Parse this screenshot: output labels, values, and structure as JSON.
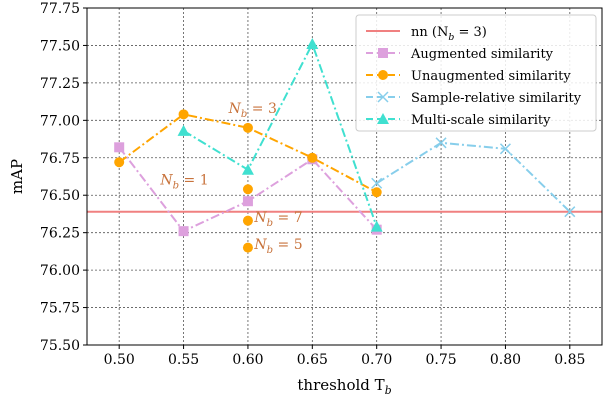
{
  "chart_data": {
    "type": "line",
    "xlabel": "threshold T",
    "xlabel_sub": "b",
    "ylabel": "mAP",
    "xlim": [
      0.475,
      0.875
    ],
    "ylim": [
      75.5,
      77.75
    ],
    "xticks": [
      0.5,
      0.55,
      0.6,
      0.65,
      0.7,
      0.75,
      0.8,
      0.85
    ],
    "yticks": [
      75.5,
      75.75,
      76.0,
      76.25,
      76.5,
      76.75,
      77.0,
      77.25,
      77.5,
      77.75
    ],
    "grid": true,
    "legend_position": "top-right",
    "legend": [
      {
        "label": "nn (N",
        "sub": "b",
        "suffix": " = 3)",
        "series": "nn"
      },
      {
        "label": "Augmented similarity",
        "series": "aug"
      },
      {
        "label": "Unaugmented similarity",
        "series": "unaug"
      },
      {
        "label": "Sample-relative similarity",
        "series": "sr"
      },
      {
        "label": "Multi-scale similarity",
        "series": "ms"
      }
    ],
    "series": [
      {
        "id": "nn",
        "name": "nn (Nb = 3)",
        "color": "#f08080",
        "style": "solid",
        "marker": "none",
        "x": [
          0.475,
          0.875
        ],
        "y": [
          76.39,
          76.39
        ]
      },
      {
        "id": "aug",
        "name": "Augmented similarity",
        "color": "#dda0dd",
        "style": "dashdot",
        "marker": "square",
        "x": [
          0.5,
          0.55,
          0.6,
          0.65,
          0.7
        ],
        "y": [
          76.82,
          76.26,
          76.46,
          76.74,
          76.27
        ]
      },
      {
        "id": "unaug",
        "name": "Unaugmented similarity",
        "color": "#ffa500",
        "style": "dashdot",
        "marker": "circle",
        "x": [
          0.5,
          0.55,
          0.6,
          0.65,
          0.7
        ],
        "y": [
          76.72,
          77.04,
          76.95,
          76.75,
          76.52
        ]
      },
      {
        "id": "sr",
        "name": "Sample-relative similarity",
        "color": "#87ceeb",
        "style": "dashdot",
        "marker": "x",
        "x": [
          0.7,
          0.75,
          0.8,
          0.85
        ],
        "y": [
          76.58,
          76.85,
          76.81,
          76.39
        ]
      },
      {
        "id": "ms",
        "name": "Multi-scale similarity",
        "color": "#40e0d0",
        "style": "dashdot",
        "marker": "triangle",
        "x": [
          0.55,
          0.6,
          0.65,
          0.7
        ],
        "y": [
          76.93,
          76.67,
          77.51,
          76.29
        ]
      }
    ],
    "extra_points": [
      {
        "x": 0.6,
        "y": 76.54,
        "color": "#ffa500"
      },
      {
        "x": 0.6,
        "y": 76.33,
        "color": "#ffa500"
      },
      {
        "x": 0.6,
        "y": 76.15,
        "color": "#ffa500"
      }
    ],
    "annotations": [
      {
        "text": "N",
        "sub": "b",
        "suffix": " = 3",
        "x": 0.585,
        "y": 77.05,
        "color": "#c8733c"
      },
      {
        "text": "N",
        "sub": "b",
        "suffix": " = 1",
        "x": 0.532,
        "y": 76.57,
        "color": "#c8733c"
      },
      {
        "text": "N",
        "sub": "b",
        "suffix": " = 7",
        "x": 0.605,
        "y": 76.32,
        "color": "#c8733c"
      },
      {
        "text": "N",
        "sub": "b",
        "suffix": " = 5",
        "x": 0.605,
        "y": 76.14,
        "color": "#c8733c"
      }
    ]
  }
}
